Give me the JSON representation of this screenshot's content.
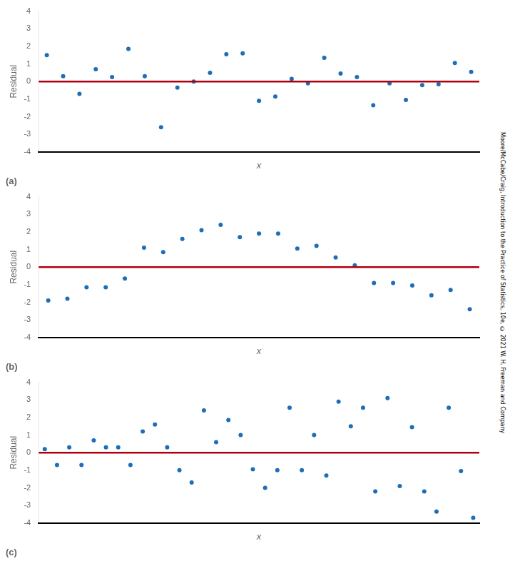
{
  "chart_data": [
    {
      "type": "scatter",
      "title": "(a)",
      "xlabel": "x",
      "ylabel": "Residual",
      "series": [
        {
          "color": "#1f6eb5",
          "marker": "circle",
          "values": [
            1.5,
            0.3,
            -0.7,
            0.7,
            0.25,
            1.85,
            0.3,
            -2.6,
            -0.35,
            0.0,
            0.5,
            1.55,
            1.6,
            -1.1,
            -0.85,
            0.15,
            -0.1,
            1.35,
            0.45,
            0.25,
            -1.35,
            -0.1,
            -1.05,
            -0.2,
            -0.15,
            1.05,
            0.55
          ]
        }
      ],
      "ylim": [
        -4,
        4
      ],
      "yticks": [
        -4,
        -3,
        -2,
        -1,
        0,
        1,
        2,
        3,
        4
      ],
      "grid": false,
      "tick_labels": "y",
      "annotations": [
        {
          "type": "hline",
          "y": 0,
          "color": "#b00010"
        }
      ]
    },
    {
      "type": "scatter",
      "title": "(b)",
      "xlabel": "x",
      "ylabel": "Residual",
      "series": [
        {
          "color": "#1f6eb5",
          "marker": "circle",
          "values": [
            -1.9,
            -1.8,
            -1.15,
            -1.15,
            -0.65,
            1.1,
            0.85,
            1.6,
            2.1,
            2.4,
            1.7,
            1.9,
            1.9,
            1.05,
            1.2,
            0.55,
            0.1,
            -0.9,
            -0.9,
            -1.05,
            -1.6,
            -1.3,
            -2.4
          ]
        }
      ],
      "ylim": [
        -4,
        4
      ],
      "yticks": [
        -4,
        -3,
        -2,
        -1,
        0,
        1,
        2,
        3,
        4
      ],
      "grid": false,
      "tick_labels": "y",
      "annotations": [
        {
          "type": "hline",
          "y": 0,
          "color": "#b00010"
        }
      ]
    },
    {
      "type": "scatter",
      "title": "(c)",
      "xlabel": "x",
      "ylabel": "Residual",
      "series": [
        {
          "color": "#1f6eb5",
          "marker": "circle",
          "values": [
            0.2,
            -0.7,
            0.3,
            -0.7,
            0.7,
            0.3,
            0.3,
            -0.7,
            1.2,
            1.6,
            0.3,
            -1.0,
            -1.7,
            2.4,
            0.6,
            1.85,
            1.0,
            -0.95,
            -2.0,
            -1.0,
            2.55,
            -1.0,
            1.0,
            -1.3,
            2.9,
            1.5,
            2.55,
            -2.2,
            3.1,
            -1.9,
            1.45,
            -2.2,
            -3.35,
            2.55,
            -1.05,
            -3.7
          ]
        }
      ],
      "ylim": [
        -4,
        4
      ],
      "yticks": [
        -4,
        -3,
        -2,
        -1,
        0,
        1,
        2,
        3,
        4
      ],
      "grid": false,
      "tick_labels": "y",
      "annotations": [
        {
          "type": "hline",
          "y": 0,
          "color": "#b00010"
        },
        {
          "text": "Moore/McCabe/Craig, Introduction to the Practice of Statistics, 10e, © 2021 W. H. Freeman and Company"
        }
      ]
    }
  ]
}
